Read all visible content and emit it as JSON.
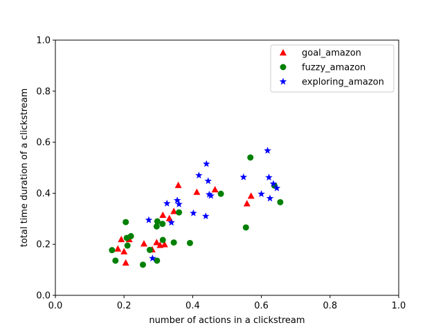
{
  "chart_data": {
    "type": "scatter",
    "title": "",
    "xlabel": "number of actions in a clickstream",
    "ylabel": "total time duration of a clickstream",
    "xlim": [
      0,
      1
    ],
    "ylim": [
      0,
      1
    ],
    "xticks": [
      "0.0",
      "0.2",
      "0.4",
      "0.6",
      "0.8",
      "1.0"
    ],
    "yticks": [
      "0.0",
      "0.2",
      "0.4",
      "0.6",
      "0.8",
      "1.0"
    ],
    "grid": false,
    "legend_position": "top-right",
    "series": [
      {
        "name": "goal_amazon",
        "marker": "triangle",
        "color": "#ff0000",
        "points": [
          [
            0.182,
            0.183
          ],
          [
            0.192,
            0.22
          ],
          [
            0.2,
            0.172
          ],
          [
            0.205,
            0.128
          ],
          [
            0.215,
            0.22
          ],
          [
            0.258,
            0.203
          ],
          [
            0.282,
            0.18
          ],
          [
            0.295,
            0.208
          ],
          [
            0.305,
            0.197
          ],
          [
            0.313,
            0.315
          ],
          [
            0.318,
            0.2
          ],
          [
            0.332,
            0.302
          ],
          [
            0.345,
            0.33
          ],
          [
            0.358,
            0.432
          ],
          [
            0.412,
            0.405
          ],
          [
            0.465,
            0.415
          ],
          [
            0.558,
            0.36
          ],
          [
            0.57,
            0.39
          ]
        ]
      },
      {
        "name": "fuzzy_amazon",
        "marker": "circle",
        "color": "#008000",
        "points": [
          [
            0.165,
            0.177
          ],
          [
            0.175,
            0.136
          ],
          [
            0.205,
            0.287
          ],
          [
            0.208,
            0.225
          ],
          [
            0.21,
            0.195
          ],
          [
            0.22,
            0.232
          ],
          [
            0.255,
            0.12
          ],
          [
            0.275,
            0.178
          ],
          [
            0.295,
            0.27
          ],
          [
            0.297,
            0.29
          ],
          [
            0.296,
            0.136
          ],
          [
            0.312,
            0.28
          ],
          [
            0.313,
            0.217
          ],
          [
            0.345,
            0.207
          ],
          [
            0.36,
            0.325
          ],
          [
            0.392,
            0.205
          ],
          [
            0.482,
            0.398
          ],
          [
            0.555,
            0.266
          ],
          [
            0.568,
            0.54
          ],
          [
            0.638,
            0.43
          ],
          [
            0.655,
            0.365
          ]
        ]
      },
      {
        "name": "exploring_amazon",
        "marker": "star",
        "color": "#0000ff",
        "points": [
          [
            0.272,
            0.295
          ],
          [
            0.283,
            0.145
          ],
          [
            0.325,
            0.36
          ],
          [
            0.338,
            0.285
          ],
          [
            0.355,
            0.372
          ],
          [
            0.36,
            0.357
          ],
          [
            0.402,
            0.322
          ],
          [
            0.418,
            0.47
          ],
          [
            0.438,
            0.31
          ],
          [
            0.44,
            0.515
          ],
          [
            0.445,
            0.448
          ],
          [
            0.448,
            0.395
          ],
          [
            0.453,
            0.39
          ],
          [
            0.548,
            0.463
          ],
          [
            0.6,
            0.397
          ],
          [
            0.618,
            0.567
          ],
          [
            0.622,
            0.462
          ],
          [
            0.625,
            0.38
          ],
          [
            0.635,
            0.437
          ],
          [
            0.645,
            0.42
          ]
        ]
      }
    ]
  }
}
